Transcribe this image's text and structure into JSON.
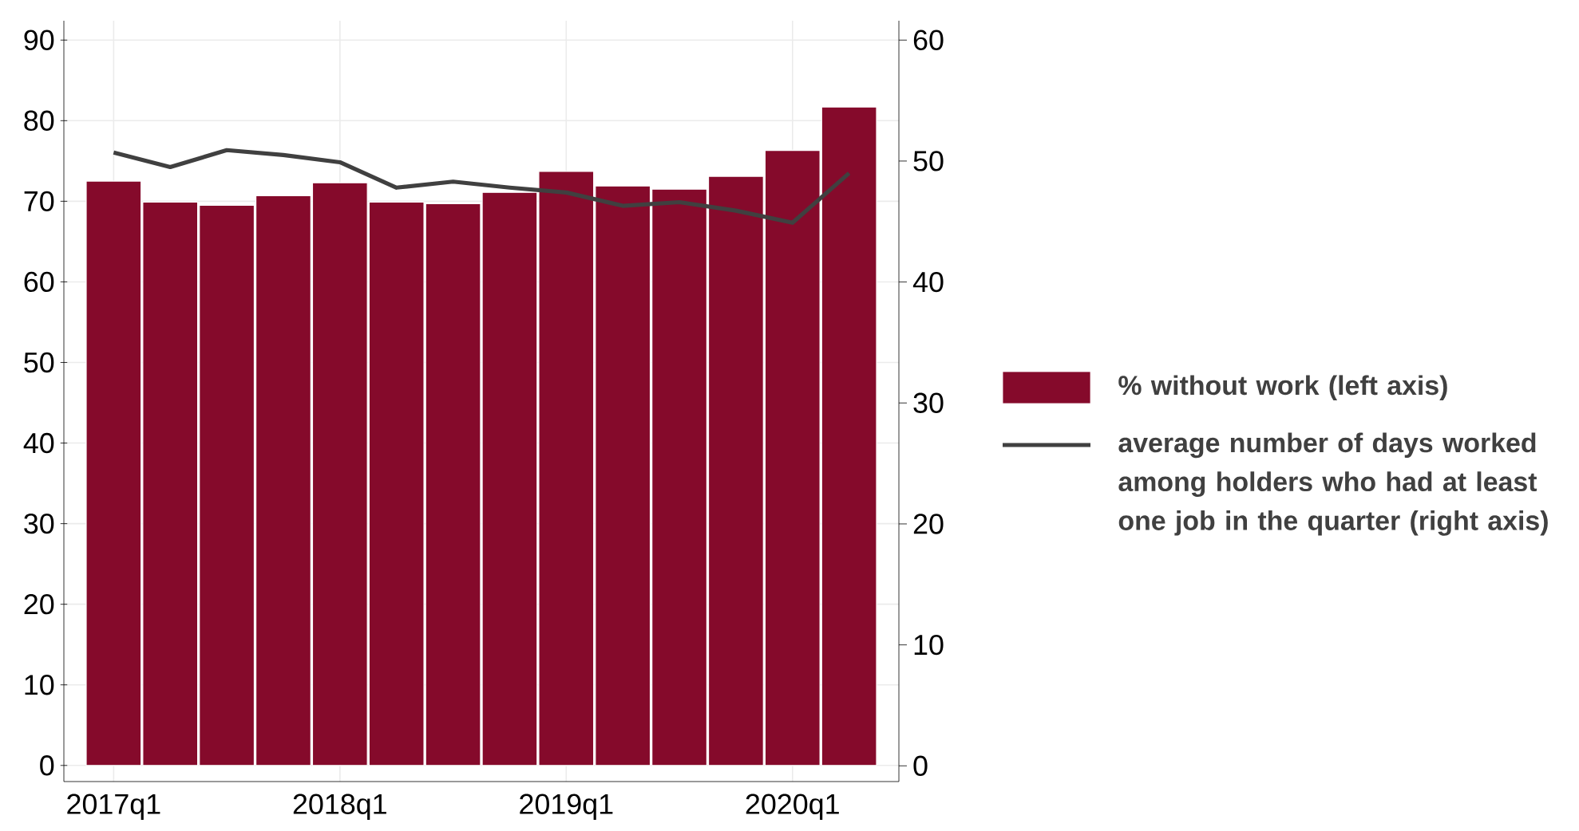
{
  "chart_data": {
    "type": "bar",
    "categories": [
      "2017q1",
      null,
      null,
      null,
      "2018q1",
      null,
      null,
      null,
      "2019q1",
      null,
      null,
      null,
      "2020q1",
      null
    ],
    "series": [
      {
        "name": "% without work (left axis)",
        "color": "#850a2b",
        "values": [
          72.5,
          69.9,
          69.5,
          70.7,
          72.3,
          69.9,
          69.7,
          71.1,
          73.7,
          71.9,
          71.5,
          73.1,
          76.3,
          81.7
        ]
      },
      {
        "name": "average number of days worked among holders who had at least one job in the quarter (right axis)",
        "type": "line",
        "axis": "y2",
        "color": "#404040",
        "values": [
          50.7,
          49.5,
          50.9,
          50.5,
          49.9,
          47.8,
          48.3,
          47.8,
          47.4,
          46.3,
          46.6,
          45.9,
          44.9,
          49.0
        ]
      }
    ],
    "ylim": [
      -2,
      92.4
    ],
    "yticks": [
      0,
      10,
      20,
      30,
      40,
      50,
      60,
      70,
      80,
      90
    ],
    "y2lim": [
      -1.3,
      61.6
    ],
    "y2ticks": [
      0,
      10,
      20,
      30,
      40,
      50,
      60
    ],
    "grid": true,
    "legend": "right"
  }
}
